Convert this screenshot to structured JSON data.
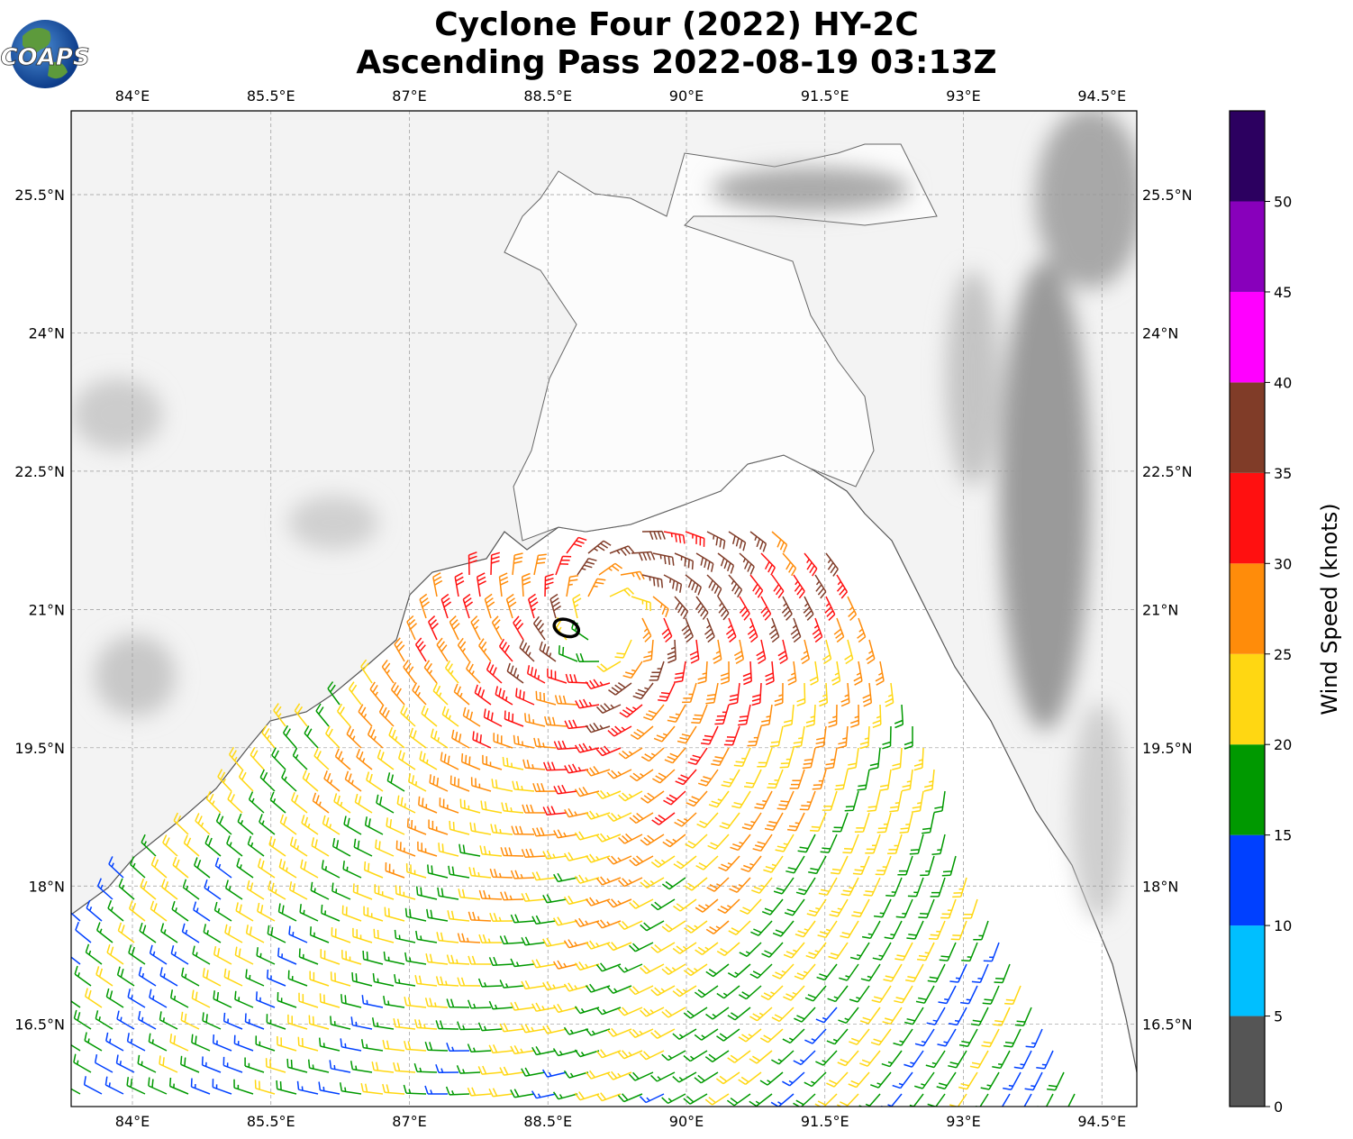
{
  "title": {
    "line1": "Cyclone Four (2022) HY-2C",
    "line2": "Ascending Pass 2022-08-19 03:13Z"
  },
  "logo": {
    "text": "COAPS"
  },
  "axes": {
    "lon_ticks": [
      "84°E",
      "85.5°E",
      "87°E",
      "88.5°E",
      "90°E",
      "91.5°E",
      "93°E",
      "94.5°E"
    ],
    "lat_ticks": [
      "25.5°N",
      "24°N",
      "22.5°N",
      "21°N",
      "19.5°N",
      "18°N",
      "16.5°N"
    ],
    "gridlines": true
  },
  "colorbar": {
    "label": "Wind Speed (knots)",
    "ticks": [
      "0",
      "5",
      "10",
      "15",
      "20",
      "25",
      "30",
      "35",
      "40",
      "45",
      "50"
    ],
    "colors": [
      "#555555",
      "#00bfff",
      "#0040ff",
      "#009900",
      "#ffd712",
      "#ff8c0a",
      "#ff1010",
      "#803c28",
      "#ff00ff",
      "#8800bb",
      "#2c0060"
    ]
  },
  "storm_center": {
    "lon": 88.7,
    "lat": 20.8
  }
}
